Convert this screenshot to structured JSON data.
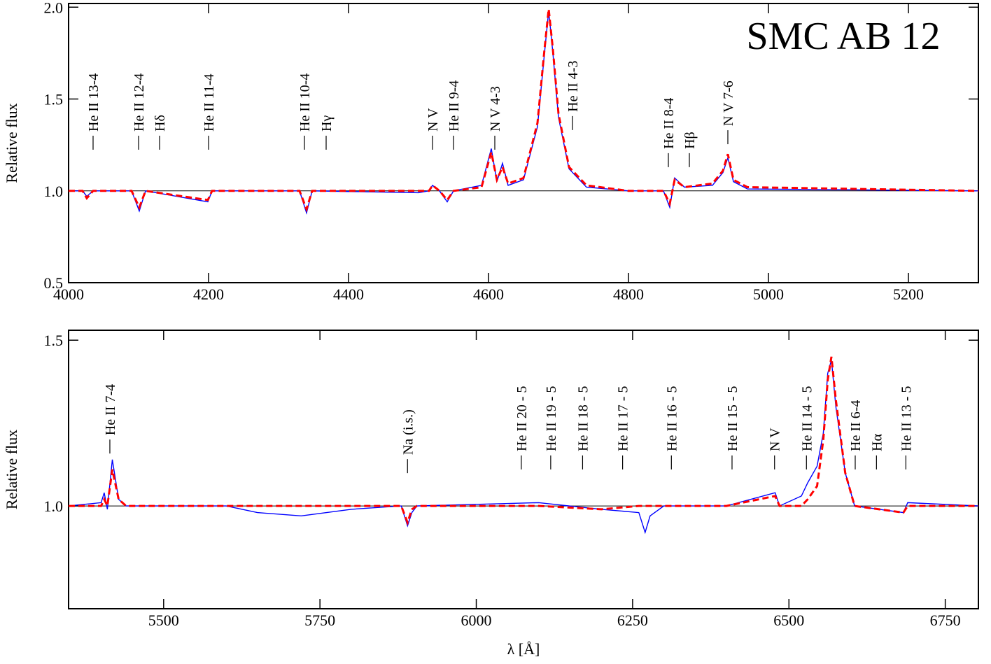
{
  "chart_data": [
    {
      "type": "line",
      "title": "SMC AB 12",
      "y_label": "Relative flux",
      "xlim": [
        4000,
        5300
      ],
      "ylim": [
        0.5,
        2.02
      ],
      "xticks": [
        4000,
        4200,
        4400,
        4600,
        4800,
        5000,
        5200
      ],
      "yticks": [
        0.5,
        {
          "value": 1,
          "label": "1.0"
        },
        1.5,
        {
          "value": 2,
          "label": "2.0"
        }
      ],
      "reference_line": 1,
      "x": [
        4000,
        4020,
        4026,
        4035,
        4090,
        4101,
        4110,
        4199,
        4205,
        4330,
        4340,
        4348,
        4500,
        4515,
        4520,
        4530,
        4541,
        4550,
        4590,
        4604,
        4612,
        4620,
        4628,
        4650,
        4670,
        4680,
        4686,
        4692,
        4700,
        4715,
        4740,
        4800,
        4850,
        4859,
        4866,
        4880,
        4920,
        4935,
        4942,
        4950,
        4970,
        5300
      ],
      "series": [
        {
          "color": "#0000ff",
          "dashed": false,
          "values": [
            1.0,
            1.0,
            0.97,
            1.0,
            1.0,
            0.89,
            1.0,
            0.94,
            1.0,
            1.0,
            0.88,
            1.0,
            0.99,
            1.0,
            1.03,
            1.0,
            0.94,
            1.0,
            1.03,
            1.23,
            1.05,
            1.15,
            1.03,
            1.06,
            1.35,
            1.75,
            1.98,
            1.75,
            1.4,
            1.12,
            1.02,
            1.0,
            1.0,
            0.91,
            1.07,
            1.02,
            1.03,
            1.1,
            1.18,
            1.05,
            1.01,
            1.0
          ]
        },
        {
          "color": "#ff0000",
          "dashed": true,
          "values": [
            1.0,
            1.0,
            0.96,
            1.0,
            1.0,
            0.91,
            1.0,
            0.95,
            1.0,
            1.0,
            0.9,
            1.0,
            1.0,
            1.0,
            1.03,
            1.0,
            0.95,
            1.0,
            1.02,
            1.21,
            1.06,
            1.13,
            1.04,
            1.07,
            1.37,
            1.77,
            1.99,
            1.77,
            1.42,
            1.13,
            1.03,
            1.0,
            1.0,
            0.93,
            1.06,
            1.02,
            1.04,
            1.11,
            1.2,
            1.06,
            1.02,
            1.0
          ]
        }
      ],
      "annotations": [
        {
          "text": "He II 13-4",
          "x": 4035,
          "y": 1.323
        },
        {
          "text": "He II 12-4",
          "x": 4100,
          "y": 1.323
        },
        {
          "text": "Hδ",
          "x": 4130,
          "y": 1.323
        },
        {
          "text": "He II 11-4",
          "x": 4200,
          "y": 1.323
        },
        {
          "text": "He II 10-4",
          "x": 4337,
          "y": 1.323
        },
        {
          "text": "Hγ",
          "x": 4368,
          "y": 1.323
        },
        {
          "text": "N V",
          "x": 4520,
          "y": 1.323
        },
        {
          "text": "He II 9-4",
          "x": 4550,
          "y": 1.323
        },
        {
          "text": "N V 4-3",
          "x": 4609,
          "y": 1.323
        },
        {
          "text": "He II 4-3",
          "x": 4720,
          "y": 1.43
        },
        {
          "text": "He II 8-4",
          "x": 4857,
          "y": 1.228
        },
        {
          "text": "Hβ",
          "x": 4887,
          "y": 1.228
        },
        {
          "text": "N V 7-6",
          "x": 4942,
          "y": 1.353
        }
      ]
    },
    {
      "type": "line",
      "x_label": "λ [Å]",
      "y_label": "Relative flux",
      "xlim": [
        5348,
        6803
      ],
      "ylim": [
        0.69,
        1.53
      ],
      "xticks": [
        5500,
        5750,
        6000,
        6250,
        6500,
        6750
      ],
      "yticks": [
        {
          "value": 1,
          "label": "1.0"
        },
        1.5
      ],
      "reference_line": 1,
      "x": [
        5348,
        5400,
        5405,
        5410,
        5418,
        5428,
        5440,
        5600,
        5650,
        5720,
        5800,
        5880,
        5890,
        5897,
        5905,
        6100,
        6200,
        6260,
        6270,
        6278,
        6300,
        6400,
        6478,
        6485,
        6520,
        6530,
        6545,
        6555,
        6562,
        6568,
        6575,
        6590,
        6605,
        6683,
        6690,
        6803
      ],
      "series": [
        {
          "color": "#0000ff",
          "dashed": false,
          "values": [
            1.0,
            1.01,
            1.04,
            0.99,
            1.14,
            1.02,
            1.0,
            1.0,
            0.98,
            0.97,
            0.99,
            1.0,
            0.94,
            0.98,
            1.0,
            1.01,
            0.99,
            0.98,
            0.92,
            0.97,
            1.0,
            1.0,
            1.04,
            1.0,
            1.03,
            1.07,
            1.12,
            1.22,
            1.4,
            1.44,
            1.3,
            1.1,
            1.0,
            0.98,
            1.01,
            1.0
          ]
        },
        {
          "color": "#ff0000",
          "dashed": true,
          "values": [
            1.0,
            1.0,
            1.02,
            1.0,
            1.11,
            1.02,
            1.0,
            1.0,
            1.0,
            1.0,
            1.0,
            1.0,
            0.95,
            0.99,
            1.0,
            1.0,
            0.99,
            1.0,
            1.0,
            1.0,
            1.0,
            1.0,
            1.03,
            1.0,
            1.0,
            1.02,
            1.06,
            1.2,
            1.38,
            1.45,
            1.32,
            1.1,
            1.0,
            0.98,
            1.0,
            1.0
          ]
        }
      ],
      "annotations": [
        {
          "text": "He II 7-4",
          "x": 5414,
          "y": 1.213
        },
        {
          "text": "Na (i.s.)",
          "x": 5890,
          "y": 1.154
        },
        {
          "text": "He II 20 - 5",
          "x": 6072,
          "y": 1.165
        },
        {
          "text": "He II 19 - 5",
          "x": 6119,
          "y": 1.165
        },
        {
          "text": "He II 18 - 5",
          "x": 6170,
          "y": 1.165
        },
        {
          "text": "He II 17 - 5",
          "x": 6234,
          "y": 1.165
        },
        {
          "text": "He II 16 - 5",
          "x": 6312,
          "y": 1.165
        },
        {
          "text": "He II 15 - 5",
          "x": 6409,
          "y": 1.165
        },
        {
          "text": "N V",
          "x": 6477,
          "y": 1.165
        },
        {
          "text": "He II 14 - 5",
          "x": 6528,
          "y": 1.165
        },
        {
          "text": "He II 6-4",
          "x": 6606,
          "y": 1.165
        },
        {
          "text": "Hα",
          "x": 6640,
          "y": 1.165
        },
        {
          "text": "He II 13 - 5",
          "x": 6687,
          "y": 1.165
        }
      ]
    }
  ]
}
